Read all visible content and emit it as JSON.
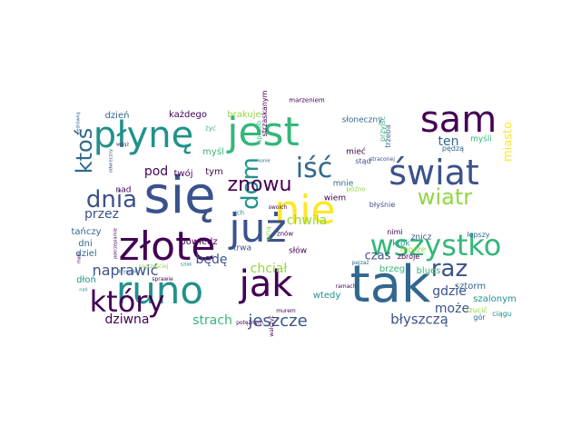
{
  "palette": {
    "background": "#ffffff",
    "dark_purple": "#440154",
    "indigo": "#3b528b",
    "blue": "#31688e",
    "teal": "#21918c",
    "green": "#35b779",
    "lime": "#90d743",
    "yellow": "#fde725"
  },
  "words": [
    {
      "text": "tak",
      "weight": 100,
      "color": "#31688e",
      "rotated": false
    },
    {
      "text": "się",
      "weight": 98,
      "color": "#3b528b",
      "rotated": false
    },
    {
      "text": "złote",
      "weight": 92,
      "color": "#440154",
      "rotated": false
    },
    {
      "text": "płynę",
      "weight": 90,
      "color": "#21918c",
      "rotated": false
    },
    {
      "text": "jest",
      "weight": 88,
      "color": "#35b779",
      "rotated": false
    },
    {
      "text": "nie",
      "weight": 88,
      "color": "#fde725",
      "rotated": false
    },
    {
      "text": "sam",
      "weight": 86,
      "color": "#440154",
      "rotated": false
    },
    {
      "text": "runo",
      "weight": 84,
      "color": "#21918c",
      "rotated": false
    },
    {
      "text": "już",
      "weight": 80,
      "color": "#3b528b",
      "rotated": false
    },
    {
      "text": "jak",
      "weight": 76,
      "color": "#440154",
      "rotated": false
    },
    {
      "text": "świat",
      "weight": 74,
      "color": "#3b528b",
      "rotated": false
    },
    {
      "text": "wszystko",
      "weight": 72,
      "color": "#35b779",
      "rotated": false
    },
    {
      "text": "który",
      "weight": 66,
      "color": "#440154",
      "rotated": false
    },
    {
      "text": "raz",
      "weight": 60,
      "color": "#3b528b",
      "rotated": false
    },
    {
      "text": "iść",
      "weight": 58,
      "color": "#31688e",
      "rotated": false
    },
    {
      "text": "dom",
      "weight": 56,
      "color": "#21918c",
      "rotated": true
    },
    {
      "text": "dnia",
      "weight": 54,
      "color": "#3b528b",
      "rotated": false
    },
    {
      "text": "ktoś",
      "weight": 52,
      "color": "#31688e",
      "rotated": true
    },
    {
      "text": "wiatr",
      "weight": 50,
      "color": "#90d743",
      "rotated": false
    },
    {
      "text": "znowu",
      "weight": 50,
      "color": "#440154",
      "rotated": false
    },
    {
      "text": "miasto",
      "weight": 34,
      "color": "#fde725",
      "rotated": true
    },
    {
      "text": "naprawić",
      "weight": 40,
      "color": "#3b528b",
      "rotated": false
    },
    {
      "text": "dziwna",
      "weight": 40,
      "color": "#440154",
      "rotated": false
    },
    {
      "text": "jeszcze",
      "weight": 40,
      "color": "#3b528b",
      "rotated": false
    },
    {
      "text": "może",
      "weight": 36,
      "color": "#3b528b",
      "rotated": false
    },
    {
      "text": "błyszczą",
      "weight": 36,
      "color": "#3b528b",
      "rotated": false
    },
    {
      "text": "pod",
      "weight": 36,
      "color": "#440154",
      "rotated": false
    },
    {
      "text": "ten",
      "weight": 34,
      "color": "#31688e",
      "rotated": false
    },
    {
      "text": "strach",
      "weight": 34,
      "color": "#35b779",
      "rotated": false
    },
    {
      "text": "chwila",
      "weight": 32,
      "color": "#90d743",
      "rotated": false
    },
    {
      "text": "chciał",
      "weight": 32,
      "color": "#90d743",
      "rotated": false
    },
    {
      "text": "gdzie",
      "weight": 32,
      "color": "#3b528b",
      "rotated": false
    },
    {
      "text": "czas",
      "weight": 32,
      "color": "#3b528b",
      "rotated": false
    },
    {
      "text": "będę",
      "weight": 32,
      "color": "#3b528b",
      "rotated": false
    },
    {
      "text": "przez",
      "weight": 30,
      "color": "#3b528b",
      "rotated": false
    },
    {
      "text": "powiedz",
      "weight": 26,
      "color": "#440154",
      "rotated": false
    },
    {
      "text": "tańczy",
      "weight": 22,
      "color": "#31688e",
      "rotated": false
    },
    {
      "text": "dni",
      "weight": 20,
      "color": "#31688e",
      "rotated": false
    },
    {
      "text": "dziel",
      "weight": 20,
      "color": "#31688e",
      "rotated": false
    },
    {
      "text": "dłoń",
      "weight": 20,
      "color": "#21918c",
      "rotated": false
    },
    {
      "text": "brzeg",
      "weight": 22,
      "color": "#35b779",
      "rotated": false
    },
    {
      "text": "wtedy",
      "weight": 20,
      "color": "#21918c",
      "rotated": false
    },
    {
      "text": "blues",
      "weight": 20,
      "color": "#35b779",
      "rotated": false
    },
    {
      "text": "sztorm",
      "weight": 20,
      "color": "#31688e",
      "rotated": false
    },
    {
      "text": "morze",
      "weight": 18,
      "color": "#90d743",
      "rotated": false
    },
    {
      "text": "znicz",
      "weight": 20,
      "color": "#3b528b",
      "rotated": false
    },
    {
      "text": "krok",
      "weight": 18,
      "color": "#21918c",
      "rotated": false
    },
    {
      "text": "szalonym",
      "weight": 18,
      "color": "#21918c",
      "rotated": false
    },
    {
      "text": "słów",
      "weight": 18,
      "color": "#440154",
      "rotated": false
    },
    {
      "text": "trwa",
      "weight": 18,
      "color": "#3b528b",
      "rotated": false
    },
    {
      "text": "wiem",
      "weight": 18,
      "color": "#440154",
      "rotated": false
    },
    {
      "text": "mnie",
      "weight": 18,
      "color": "#31688e",
      "rotated": false
    },
    {
      "text": "tym",
      "weight": 20,
      "color": "#440154",
      "rotated": false
    },
    {
      "text": "twój",
      "weight": 20,
      "color": "#440154",
      "rotated": false
    },
    {
      "text": "myśl",
      "weight": 20,
      "color": "#35b779",
      "rotated": false
    },
    {
      "text": "każdego",
      "weight": 20,
      "color": "#440154",
      "rotated": false
    },
    {
      "text": "brakuje",
      "weight": 20,
      "color": "#90d743",
      "rotated": false
    },
    {
      "text": "dzień",
      "weight": 18,
      "color": "#31688e",
      "rotated": false
    },
    {
      "text": "słoneczny",
      "weight": 18,
      "color": "#31688e",
      "rotated": false
    },
    {
      "text": "mieć",
      "weight": 18,
      "color": "#440154",
      "rotated": false
    },
    {
      "text": "myśli",
      "weight": 18,
      "color": "#35b779",
      "rotated": false
    },
    {
      "text": "trzeba",
      "weight": 16,
      "color": "#31688e",
      "rotated": true
    },
    {
      "text": "przyjść",
      "weight": 16,
      "color": "#35b779",
      "rotated": true
    },
    {
      "text": "stąd",
      "weight": 18,
      "color": "#3b528b",
      "rotated": false
    },
    {
      "text": "żyć",
      "weight": 16,
      "color": "#35b779",
      "rotated": false
    },
    {
      "text": "pędzą",
      "weight": 16,
      "color": "#31688e",
      "rotated": false
    },
    {
      "text": "błyśnie",
      "weight": 14,
      "color": "#3b528b",
      "rotated": false
    },
    {
      "text": "nimi",
      "weight": 16,
      "color": "#440154",
      "rotated": false
    },
    {
      "text": "lepszy",
      "weight": 14,
      "color": "#31688e",
      "rotated": false
    },
    {
      "text": "ciągu",
      "weight": 14,
      "color": "#21918c",
      "rotated": false
    },
    {
      "text": "rzucić",
      "weight": 14,
      "color": "#90d743",
      "rotated": false
    },
    {
      "text": "zbroje",
      "weight": 16,
      "color": "#440154",
      "rotated": false
    },
    {
      "text": "gór",
      "weight": 14,
      "color": "#31688e",
      "rotated": false
    },
    {
      "text": "nad",
      "weight": 18,
      "color": "#440154",
      "rotated": false
    },
    {
      "text": "znów",
      "weight": 16,
      "color": "#440154",
      "rotated": false
    },
    {
      "text": "ich",
      "weight": 16,
      "color": "#21918c",
      "rotated": false
    },
    {
      "text": "późno",
      "weight": 16,
      "color": "#90d743",
      "rotated": false
    },
    {
      "text": "mną",
      "weight": 14,
      "color": "#90d743",
      "rotated": true
    },
    {
      "text": "pejzaż",
      "weight": 14,
      "color": "#31688e",
      "rotated": false
    },
    {
      "text": "ramach",
      "weight": 12,
      "color": "#440154",
      "rotated": false
    },
    {
      "text": "murem",
      "weight": 14,
      "color": "#440154",
      "rotated": false
    },
    {
      "text": "potężnym",
      "weight": 12,
      "color": "#440154",
      "rotated": false
    },
    {
      "text": "najczęściej",
      "weight": 12,
      "color": "#90d743",
      "rotated": false
    },
    {
      "text": "sprawie",
      "weight": 12,
      "color": "#440154",
      "rotated": false
    },
    {
      "text": "walczyć",
      "weight": 12,
      "color": "#440154",
      "rotated": true
    },
    {
      "text": "swoich",
      "weight": 12,
      "color": "#440154",
      "rotated": false
    },
    {
      "text": "kryształu",
      "weight": 14,
      "color": "#31688e",
      "rotated": false
    },
    {
      "text": "pokrzepiamie",
      "weight": 12,
      "color": "#440154",
      "rotated": true
    },
    {
      "text": "odwieczny",
      "weight": 12,
      "color": "#3b528b",
      "rotated": true
    },
    {
      "text": "wciąż",
      "weight": 12,
      "color": "#440154",
      "rotated": false
    },
    {
      "text": "konie",
      "weight": 12,
      "color": "#31688e",
      "rotated": false
    },
    {
      "text": "sposób",
      "weight": 12,
      "color": "#35b779",
      "rotated": true
    },
    {
      "text": "strzaskanym",
      "weight": 14,
      "color": "#440154",
      "rotated": true
    },
    {
      "text": "marzeniem",
      "weight": 14,
      "color": "#440154",
      "rotated": false
    },
    {
      "text": "straconej",
      "weight": 14,
      "color": "#3b528b",
      "rotated": false
    },
    {
      "text": "wędrówką",
      "weight": 12,
      "color": "#31688e",
      "rotated": true
    },
    {
      "text": "mało",
      "weight": 12,
      "color": "#440154",
      "rotated": true
    },
    {
      "text": "szlak",
      "weight": 12,
      "color": "#21918c",
      "rotated": false
    },
    {
      "text": "nań",
      "weight": 12,
      "color": "#21918c",
      "rotated": false
    },
    {
      "text": "czasem",
      "weight": 12,
      "color": "#21918c",
      "rotated": false
    }
  ]
}
